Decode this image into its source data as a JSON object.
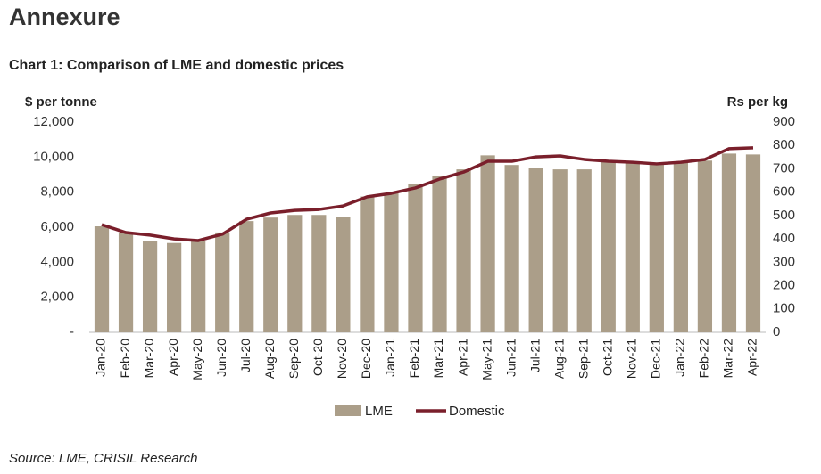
{
  "heading": "Annexure",
  "chart_data": {
    "type": "bar-line",
    "title": "Chart 1: Comparison of LME and domestic prices",
    "y_label": "$ per tonne",
    "y2_label": "Rs per kg",
    "source": "Source: LME, CRISIL Research",
    "categories": [
      "Jan-20",
      "Feb-20",
      "Mar-20",
      "Apr-20",
      "May-20",
      "Jun-20",
      "Jul-20",
      "Aug-20",
      "Sep-20",
      "Oct-20",
      "Nov-20",
      "Dec-20",
      "Jan-21",
      "Feb-21",
      "Mar-21",
      "Apr-21",
      "May-21",
      "Jun-21",
      "Jul-21",
      "Aug-21",
      "Sep-21",
      "Oct-21",
      "Nov-21",
      "Dec-21",
      "Jan-22",
      "Feb-22",
      "Mar-22",
      "Apr-22"
    ],
    "series": [
      {
        "name": "LME",
        "type": "bar",
        "color": "#ab9e89",
        "values": [
          6050,
          5700,
          5200,
          5100,
          5200,
          5700,
          6350,
          6550,
          6700,
          6700,
          6600,
          7750,
          7950,
          8450,
          8950,
          9300,
          10100,
          9550,
          9400,
          9300,
          9300,
          9750,
          9750,
          9600,
          9750,
          9800,
          10200,
          10150
        ]
      },
      {
        "name": "Domestic",
        "type": "line",
        "axis": "y2",
        "color": "#7a1f2b",
        "values": [
          461,
          427,
          416,
          400,
          393,
          420,
          484,
          511,
          522,
          526,
          541,
          580,
          595,
          618,
          656,
          686,
          732,
          732,
          751,
          755,
          740,
          732,
          728,
          721,
          728,
          740,
          786,
          790
        ]
      }
    ],
    "ylim": [
      0,
      12000
    ],
    "yticks": [
      {
        "value": 0,
        "label": "-"
      },
      {
        "value": 2000,
        "label": "2,000"
      },
      {
        "value": 4000,
        "label": "4,000"
      },
      {
        "value": 6000,
        "label": "6,000"
      },
      {
        "value": 8000,
        "label": "8,000"
      },
      {
        "value": 10000,
        "label": "10,000"
      },
      {
        "value": 12000,
        "label": "12,000"
      }
    ],
    "y2lim": [
      0,
      900
    ],
    "y2ticks": [
      0,
      100,
      200,
      300,
      400,
      500,
      600,
      700,
      800,
      900
    ],
    "grid": false,
    "legend": "bottom"
  }
}
